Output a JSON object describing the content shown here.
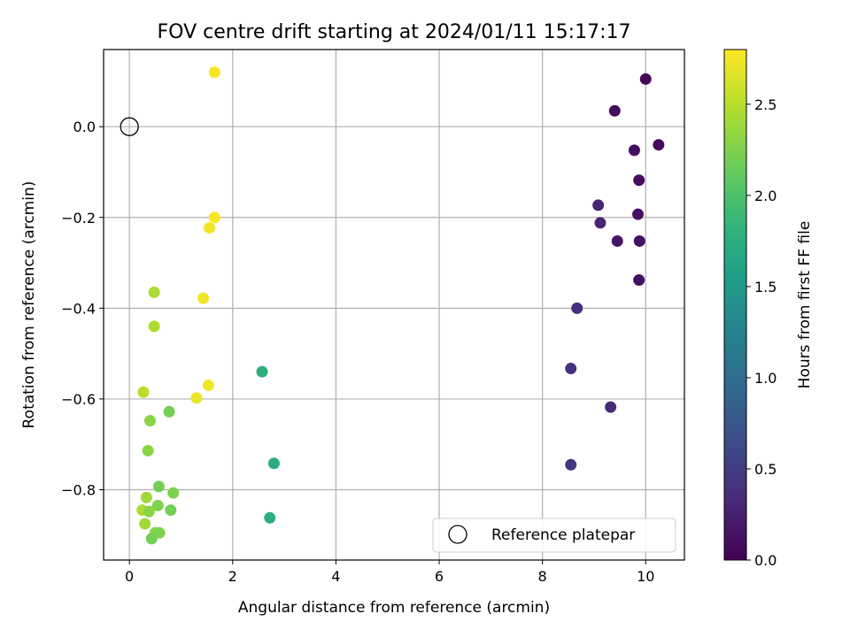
{
  "chart_data": {
    "type": "scatter",
    "title": "FOV centre drift starting at 2024/01/11 15:17:17",
    "xlabel": "Angular distance from reference (arcmin)",
    "ylabel": "Rotation from reference (arcmin)",
    "xlim": [
      -0.5,
      10.75
    ],
    "ylim": [
      -0.955,
      0.17
    ],
    "xticks": [
      0,
      2,
      4,
      6,
      8,
      10
    ],
    "yticks": [
      0.0,
      -0.2,
      -0.4,
      -0.6,
      -0.8
    ],
    "xtick_labels": [
      "0",
      "2",
      "4",
      "6",
      "8",
      "10"
    ],
    "ytick_labels": [
      "0.0",
      "−0.2",
      "−0.4",
      "−0.6",
      "−0.8"
    ],
    "grid": true,
    "colormap": "viridis",
    "colorbar": {
      "label": "Hours from first FF file",
      "range": [
        0.0,
        2.8
      ],
      "ticks": [
        0.0,
        0.5,
        1.0,
        1.5,
        2.0,
        2.5
      ],
      "tick_labels": [
        "0.0",
        "0.5",
        "1.0",
        "1.5",
        "2.0",
        "2.5"
      ]
    },
    "legend": {
      "position": "bottom-right",
      "entries": [
        "Reference platepar"
      ]
    },
    "reference_point": {
      "x": 0.0,
      "y": 0.0,
      "label": "Reference platepar"
    },
    "points": [
      {
        "x": 10.0,
        "y": 0.105,
        "hours": 0.05
      },
      {
        "x": 9.4,
        "y": 0.035,
        "hours": 0.08
      },
      {
        "x": 10.25,
        "y": -0.04,
        "hours": 0.05
      },
      {
        "x": 9.78,
        "y": -0.052,
        "hours": 0.1
      },
      {
        "x": 9.87,
        "y": -0.118,
        "hours": 0.08
      },
      {
        "x": 9.08,
        "y": -0.173,
        "hours": 0.28
      },
      {
        "x": 9.85,
        "y": -0.193,
        "hours": 0.12
      },
      {
        "x": 9.12,
        "y": -0.212,
        "hours": 0.28
      },
      {
        "x": 9.45,
        "y": -0.252,
        "hours": 0.15
      },
      {
        "x": 9.88,
        "y": -0.252,
        "hours": 0.12
      },
      {
        "x": 9.87,
        "y": -0.338,
        "hours": 0.1
      },
      {
        "x": 8.67,
        "y": -0.4,
        "hours": 0.38
      },
      {
        "x": 8.55,
        "y": -0.533,
        "hours": 0.4
      },
      {
        "x": 9.32,
        "y": -0.618,
        "hours": 0.32
      },
      {
        "x": 8.55,
        "y": -0.745,
        "hours": 0.45
      },
      {
        "x": 2.57,
        "y": -0.54,
        "hours": 1.75
      },
      {
        "x": 2.8,
        "y": -0.742,
        "hours": 1.72
      },
      {
        "x": 2.72,
        "y": -0.862,
        "hours": 1.75
      },
      {
        "x": 1.65,
        "y": 0.12,
        "hours": 2.78
      },
      {
        "x": 1.65,
        "y": -0.2,
        "hours": 2.78
      },
      {
        "x": 1.55,
        "y": -0.223,
        "hours": 2.75
      },
      {
        "x": 1.43,
        "y": -0.378,
        "hours": 2.75
      },
      {
        "x": 1.53,
        "y": -0.57,
        "hours": 2.75
      },
      {
        "x": 1.3,
        "y": -0.598,
        "hours": 2.72
      },
      {
        "x": 0.48,
        "y": -0.365,
        "hours": 2.45
      },
      {
        "x": 0.48,
        "y": -0.44,
        "hours": 2.45
      },
      {
        "x": 0.27,
        "y": -0.585,
        "hours": 2.5
      },
      {
        "x": 0.4,
        "y": -0.648,
        "hours": 2.3
      },
      {
        "x": 0.77,
        "y": -0.628,
        "hours": 2.2
      },
      {
        "x": 0.36,
        "y": -0.714,
        "hours": 2.3
      },
      {
        "x": 0.57,
        "y": -0.793,
        "hours": 2.2
      },
      {
        "x": 0.85,
        "y": -0.807,
        "hours": 2.25
      },
      {
        "x": 0.33,
        "y": -0.817,
        "hours": 2.4
      },
      {
        "x": 0.55,
        "y": -0.835,
        "hours": 2.25
      },
      {
        "x": 0.25,
        "y": -0.845,
        "hours": 2.45
      },
      {
        "x": 0.38,
        "y": -0.848,
        "hours": 2.3
      },
      {
        "x": 0.8,
        "y": -0.845,
        "hours": 2.2
      },
      {
        "x": 0.3,
        "y": -0.875,
        "hours": 2.4
      },
      {
        "x": 0.5,
        "y": -0.895,
        "hours": 2.3
      },
      {
        "x": 0.58,
        "y": -0.895,
        "hours": 2.25
      },
      {
        "x": 0.43,
        "y": -0.908,
        "hours": 2.2
      }
    ]
  }
}
